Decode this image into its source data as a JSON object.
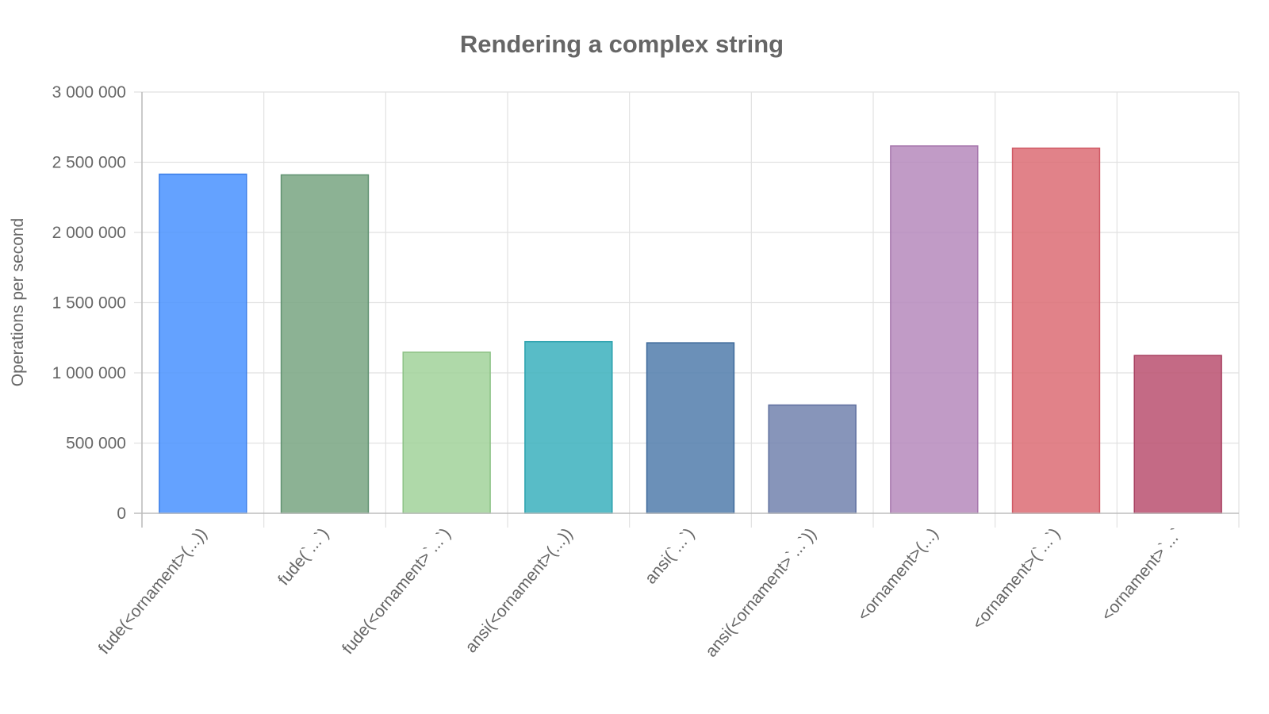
{
  "chart_data": {
    "type": "bar",
    "title": "Rendering a complex string",
    "xlabel": "",
    "ylabel": "Operations per second",
    "ylim": [
      0,
      3000000
    ],
    "yticks": [
      0,
      500000,
      1000000,
      1500000,
      2000000,
      2500000,
      3000000
    ],
    "ytick_labels": [
      "0",
      "500 000",
      "1 000 000",
      "1 500 000",
      "2 000 000",
      "2 500 000",
      "3 000 000"
    ],
    "grid": true,
    "legend": "none",
    "categories": [
      "fude(<ornament>(...))",
      "fude(`...`)",
      "fude(<ornament>`...`)",
      "ansi(<ornament>(...))",
      "ansi(`...`)",
      "ansi(<ornament>`...`))",
      "<ornament>(...)",
      "<ornament>(`...`)",
      "<ornament>`...`"
    ],
    "values": [
      2415000,
      2410000,
      1147000,
      1222000,
      1214000,
      771000,
      2616000,
      2600000,
      1124000
    ],
    "colors": [
      "#4d94ff",
      "#7ba784",
      "#a3d39c",
      "#3fb2bf",
      "#557fae",
      "#7585b0",
      "#b88cbd",
      "#dd6f78",
      "#bb5473"
    ],
    "border_colors": [
      "#3a7ee8",
      "#5f9170",
      "#8cc285",
      "#2ba2ae",
      "#3f6a9b",
      "#5e6f9e",
      "#a677ad",
      "#cf5864",
      "#a73f60"
    ]
  }
}
